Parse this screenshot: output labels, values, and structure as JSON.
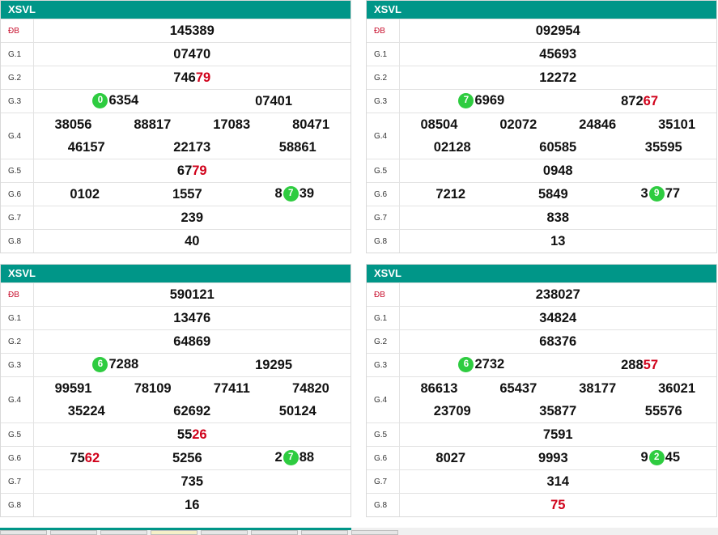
{
  "panels": [
    {
      "title": "XSVL",
      "rows": [
        {
          "label": "ĐB",
          "groups": [
            [
              {
                "t": "145389"
              }
            ]
          ]
        },
        {
          "label": "G.1",
          "groups": [
            [
              {
                "t": "07470"
              }
            ]
          ]
        },
        {
          "label": "G.2",
          "groups": [
            [
              {
                "t": "746"
              },
              {
                "t": "79",
                "red": true
              }
            ]
          ]
        },
        {
          "label": "G.3",
          "groups": [
            [
              {
                "t": "0",
                "ball": true
              },
              {
                "t": "6354"
              }
            ],
            [
              {
                "t": "07401"
              }
            ]
          ]
        },
        {
          "label": "G.4",
          "lines": [
            [
              [
                {
                  "t": "38056"
                }
              ],
              [
                {
                  "t": "88817"
                }
              ],
              [
                {
                  "t": "17083"
                }
              ],
              [
                {
                  "t": "80471"
                }
              ]
            ],
            [
              [
                {
                  "t": "46157"
                }
              ],
              [
                {
                  "t": "22173"
                }
              ],
              [
                {
                  "t": "58861"
                }
              ]
            ]
          ]
        },
        {
          "label": "G.5",
          "groups": [
            [
              {
                "t": "67"
              },
              {
                "t": "79",
                "red": true
              }
            ]
          ]
        },
        {
          "label": "G.6",
          "groups": [
            [
              {
                "t": "0102"
              }
            ],
            [
              {
                "t": "1557"
              }
            ],
            [
              {
                "t": "8"
              },
              {
                "t": "7",
                "ball": true
              },
              {
                "t": "39"
              }
            ]
          ]
        },
        {
          "label": "G.7",
          "groups": [
            [
              {
                "t": "239"
              }
            ]
          ]
        },
        {
          "label": "G.8",
          "groups": [
            [
              {
                "t": "40"
              }
            ]
          ]
        }
      ]
    },
    {
      "title": "XSVL",
      "rows": [
        {
          "label": "ĐB",
          "groups": [
            [
              {
                "t": "092954"
              }
            ]
          ]
        },
        {
          "label": "G.1",
          "groups": [
            [
              {
                "t": "45693"
              }
            ]
          ]
        },
        {
          "label": "G.2",
          "groups": [
            [
              {
                "t": "12272"
              }
            ]
          ]
        },
        {
          "label": "G.3",
          "groups": [
            [
              {
                "t": "7",
                "ball": true
              },
              {
                "t": "6969"
              }
            ],
            [
              {
                "t": "872"
              },
              {
                "t": "67",
                "red": true
              }
            ]
          ]
        },
        {
          "label": "G.4",
          "lines": [
            [
              [
                {
                  "t": "08504"
                }
              ],
              [
                {
                  "t": "02072"
                }
              ],
              [
                {
                  "t": "24846"
                }
              ],
              [
                {
                  "t": "35101"
                }
              ]
            ],
            [
              [
                {
                  "t": "02128"
                }
              ],
              [
                {
                  "t": "60585"
                }
              ],
              [
                {
                  "t": "35595"
                }
              ]
            ]
          ]
        },
        {
          "label": "G.5",
          "groups": [
            [
              {
                "t": "0948"
              }
            ]
          ]
        },
        {
          "label": "G.6",
          "groups": [
            [
              {
                "t": "7212"
              }
            ],
            [
              {
                "t": "5849"
              }
            ],
            [
              {
                "t": "3"
              },
              {
                "t": "9",
                "ball": true
              },
              {
                "t": "77"
              }
            ]
          ]
        },
        {
          "label": "G.7",
          "groups": [
            [
              {
                "t": "838"
              }
            ]
          ]
        },
        {
          "label": "G.8",
          "groups": [
            [
              {
                "t": "13"
              }
            ]
          ]
        }
      ]
    },
    {
      "title": "XSVL",
      "rows": [
        {
          "label": "ĐB",
          "groups": [
            [
              {
                "t": "590121"
              }
            ]
          ]
        },
        {
          "label": "G.1",
          "groups": [
            [
              {
                "t": "13476"
              }
            ]
          ]
        },
        {
          "label": "G.2",
          "groups": [
            [
              {
                "t": "64869"
              }
            ]
          ]
        },
        {
          "label": "G.3",
          "groups": [
            [
              {
                "t": "6",
                "ball": true
              },
              {
                "t": "7288"
              }
            ],
            [
              {
                "t": "19295"
              }
            ]
          ]
        },
        {
          "label": "G.4",
          "lines": [
            [
              [
                {
                  "t": "99591"
                }
              ],
              [
                {
                  "t": "78109"
                }
              ],
              [
                {
                  "t": "77411"
                }
              ],
              [
                {
                  "t": "74820"
                }
              ]
            ],
            [
              [
                {
                  "t": "35224"
                }
              ],
              [
                {
                  "t": "62692"
                }
              ],
              [
                {
                  "t": "50124"
                }
              ]
            ]
          ]
        },
        {
          "label": "G.5",
          "groups": [
            [
              {
                "t": "55"
              },
              {
                "t": "26",
                "red": true
              }
            ]
          ]
        },
        {
          "label": "G.6",
          "groups": [
            [
              {
                "t": "75"
              },
              {
                "t": "62",
                "red": true
              }
            ],
            [
              {
                "t": "5256"
              }
            ],
            [
              {
                "t": "2"
              },
              {
                "t": "7",
                "ball": true
              },
              {
                "t": "88"
              }
            ]
          ]
        },
        {
          "label": "G.7",
          "groups": [
            [
              {
                "t": "735"
              }
            ]
          ]
        },
        {
          "label": "G.8",
          "groups": [
            [
              {
                "t": "16"
              }
            ]
          ]
        }
      ]
    },
    {
      "title": "XSVL",
      "rows": [
        {
          "label": "ĐB",
          "groups": [
            [
              {
                "t": "238027"
              }
            ]
          ]
        },
        {
          "label": "G.1",
          "groups": [
            [
              {
                "t": "34824"
              }
            ]
          ]
        },
        {
          "label": "G.2",
          "groups": [
            [
              {
                "t": "68376"
              }
            ]
          ]
        },
        {
          "label": "G.3",
          "groups": [
            [
              {
                "t": "6",
                "ball": true
              },
              {
                "t": "2732"
              }
            ],
            [
              {
                "t": "288"
              },
              {
                "t": "57",
                "red": true
              }
            ]
          ]
        },
        {
          "label": "G.4",
          "lines": [
            [
              [
                {
                  "t": "86613"
                }
              ],
              [
                {
                  "t": "65437"
                }
              ],
              [
                {
                  "t": "38177"
                }
              ],
              [
                {
                  "t": "36021"
                }
              ]
            ],
            [
              [
                {
                  "t": "23709"
                }
              ],
              [
                {
                  "t": "35877"
                }
              ],
              [
                {
                  "t": "55576"
                }
              ]
            ]
          ]
        },
        {
          "label": "G.5",
          "groups": [
            [
              {
                "t": "7591"
              }
            ]
          ]
        },
        {
          "label": "G.6",
          "groups": [
            [
              {
                "t": "8027"
              }
            ],
            [
              {
                "t": "9993"
              }
            ],
            [
              {
                "t": "9"
              },
              {
                "t": "2",
                "ball": true
              },
              {
                "t": "45"
              }
            ]
          ]
        },
        {
          "label": "G.7",
          "groups": [
            [
              {
                "t": "314"
              }
            ]
          ]
        },
        {
          "label": "G.8",
          "groups": [
            [
              {
                "t": "75",
                "red": true
              }
            ]
          ]
        }
      ]
    }
  ]
}
